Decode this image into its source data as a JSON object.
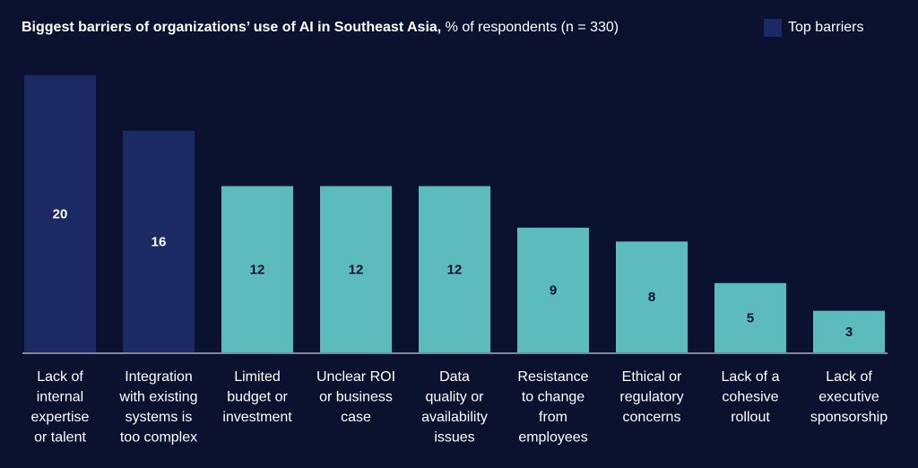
{
  "title_bold": "Biggest barriers of organizations’ use of AI in Southeast Asia,",
  "title_rest": " % of respondents (n = 330)",
  "legend": {
    "label": "Top barriers",
    "color": "#1c2a63"
  },
  "colors": {
    "top": "#1c2a63",
    "other": "#5cbcbd",
    "top_label": "#ffffff",
    "other_label": "#0a1230",
    "background": "#0a1230"
  },
  "chart_data": {
    "type": "bar",
    "title": "Biggest barriers of organizations’ use of AI in Southeast Asia, % of respondents (n = 330)",
    "categories": [
      [
        "Lack of",
        "internal",
        "expertise",
        "or talent"
      ],
      [
        "Integration",
        "with existing",
        "systems is",
        "too complex"
      ],
      [
        "Limited",
        "budget or",
        "investment"
      ],
      [
        "Unclear ROI",
        "or business",
        "case"
      ],
      [
        "Data",
        "quality or",
        "availability",
        "issues"
      ],
      [
        "Resistance",
        "to change",
        "from",
        "employees"
      ],
      [
        "Ethical or",
        "regulatory",
        "concerns"
      ],
      [
        "Lack of a",
        "cohesive",
        "rollout"
      ],
      [
        "Lack of",
        "executive",
        "sponsorship"
      ]
    ],
    "values": [
      20,
      16,
      12,
      12,
      12,
      9,
      8,
      5,
      3
    ],
    "top_barrier": [
      true,
      true,
      false,
      false,
      false,
      false,
      false,
      false,
      false
    ],
    "ylim": [
      0,
      20
    ],
    "grid": false,
    "legend_position": "top-right"
  }
}
